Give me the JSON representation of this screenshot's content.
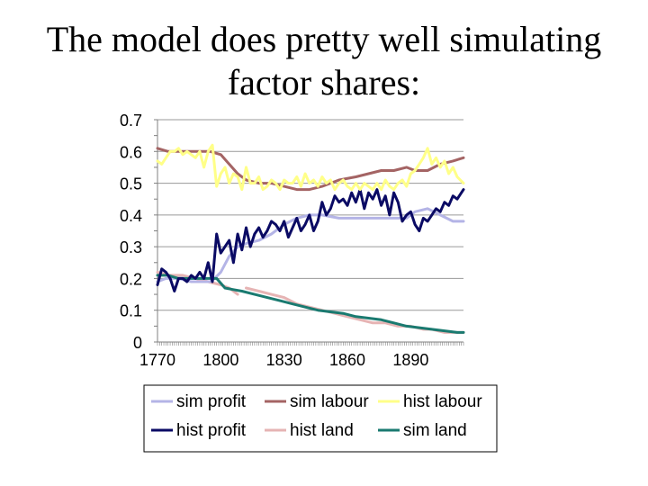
{
  "title_line1": "The model does pretty well simulating",
  "title_line2": "factor shares:",
  "chart_data": {
    "type": "line",
    "title": "The model does pretty well simulating factor shares:",
    "xlabel": "",
    "ylabel": "",
    "xlim": [
      1770,
      1915
    ],
    "ylim": [
      0,
      0.7
    ],
    "x_ticks": [
      "1770",
      "1800",
      "1830",
      "1860",
      "1890"
    ],
    "y_ticks": [
      "0",
      "0.1",
      "0.2",
      "0.3",
      "0.4",
      "0.5",
      "0.6",
      "0.7"
    ],
    "grid": true,
    "legend_position": "bottom",
    "series": [
      {
        "name": "sim profit",
        "color": "#b4b4e6",
        "x": [
          1770,
          1774,
          1780,
          1786,
          1790,
          1795,
          1797,
          1800,
          1804,
          1808,
          1812,
          1818,
          1824,
          1830,
          1836,
          1842,
          1848,
          1856,
          1864,
          1872,
          1880,
          1888,
          1892,
          1898,
          1904,
          1910,
          1915
        ],
        "y": [
          0.19,
          0.2,
          0.2,
          0.19,
          0.19,
          0.19,
          0.2,
          0.22,
          0.27,
          0.3,
          0.31,
          0.32,
          0.34,
          0.37,
          0.39,
          0.4,
          0.4,
          0.39,
          0.39,
          0.39,
          0.39,
          0.39,
          0.41,
          0.42,
          0.4,
          0.38,
          0.38
        ]
      },
      {
        "name": "sim labour",
        "color": "#a46464",
        "x": [
          1770,
          1775,
          1780,
          1785,
          1790,
          1795,
          1800,
          1804,
          1808,
          1812,
          1818,
          1824,
          1830,
          1836,
          1842,
          1848,
          1856,
          1864,
          1870,
          1876,
          1882,
          1888,
          1892,
          1898,
          1904,
          1910,
          1915
        ],
        "y": [
          0.61,
          0.6,
          0.6,
          0.6,
          0.6,
          0.6,
          0.59,
          0.56,
          0.53,
          0.51,
          0.5,
          0.5,
          0.49,
          0.48,
          0.48,
          0.49,
          0.51,
          0.52,
          0.53,
          0.54,
          0.54,
          0.55,
          0.54,
          0.54,
          0.56,
          0.57,
          0.58
        ]
      },
      {
        "name": "hist labour",
        "color": "#ffff88",
        "x": [
          1770,
          1772,
          1774,
          1776,
          1778,
          1780,
          1782,
          1784,
          1786,
          1788,
          1790,
          1792,
          1794,
          1796,
          1798,
          1800,
          1802,
          1804,
          1806,
          1808,
          1810,
          1812,
          1814,
          1816,
          1818,
          1820,
          1822,
          1824,
          1826,
          1828,
          1830,
          1832,
          1834,
          1836,
          1838,
          1840,
          1842,
          1844,
          1846,
          1848,
          1850,
          1852,
          1854,
          1856,
          1858,
          1860,
          1862,
          1864,
          1866,
          1868,
          1870,
          1872,
          1874,
          1876,
          1878,
          1880,
          1882,
          1884,
          1886,
          1888,
          1890,
          1892,
          1894,
          1896,
          1898,
          1900,
          1902,
          1904,
          1906,
          1908,
          1910,
          1912,
          1915
        ],
        "y": [
          0.57,
          0.56,
          0.58,
          0.6,
          0.6,
          0.61,
          0.59,
          0.6,
          0.59,
          0.58,
          0.6,
          0.55,
          0.6,
          0.62,
          0.49,
          0.53,
          0.55,
          0.5,
          0.53,
          0.52,
          0.48,
          0.55,
          0.5,
          0.5,
          0.52,
          0.48,
          0.49,
          0.51,
          0.5,
          0.48,
          0.51,
          0.5,
          0.5,
          0.52,
          0.49,
          0.53,
          0.5,
          0.51,
          0.49,
          0.52,
          0.5,
          0.51,
          0.48,
          0.5,
          0.51,
          0.49,
          0.48,
          0.5,
          0.48,
          0.5,
          0.49,
          0.48,
          0.5,
          0.48,
          0.51,
          0.49,
          0.48,
          0.5,
          0.51,
          0.49,
          0.53,
          0.54,
          0.56,
          0.58,
          0.61,
          0.56,
          0.58,
          0.55,
          0.57,
          0.53,
          0.55,
          0.52,
          0.5
        ]
      },
      {
        "name": "hist profit",
        "color": "#0a0a64",
        "x": [
          1770,
          1772,
          1774,
          1776,
          1778,
          1780,
          1782,
          1784,
          1786,
          1788,
          1790,
          1792,
          1794,
          1796,
          1798,
          1800,
          1802,
          1804,
          1806,
          1808,
          1810,
          1812,
          1814,
          1816,
          1818,
          1820,
          1822,
          1824,
          1826,
          1828,
          1830,
          1832,
          1834,
          1836,
          1838,
          1840,
          1842,
          1844,
          1846,
          1848,
          1850,
          1852,
          1854,
          1856,
          1858,
          1860,
          1862,
          1864,
          1866,
          1868,
          1870,
          1872,
          1874,
          1876,
          1878,
          1880,
          1882,
          1884,
          1886,
          1888,
          1890,
          1892,
          1894,
          1896,
          1898,
          1900,
          1902,
          1904,
          1906,
          1908,
          1910,
          1912,
          1915
        ],
        "y": [
          0.18,
          0.23,
          0.22,
          0.2,
          0.16,
          0.2,
          0.2,
          0.19,
          0.21,
          0.2,
          0.22,
          0.2,
          0.25,
          0.19,
          0.34,
          0.28,
          0.3,
          0.32,
          0.25,
          0.34,
          0.29,
          0.36,
          0.3,
          0.34,
          0.36,
          0.33,
          0.35,
          0.38,
          0.37,
          0.35,
          0.38,
          0.33,
          0.36,
          0.39,
          0.35,
          0.37,
          0.4,
          0.35,
          0.38,
          0.44,
          0.4,
          0.42,
          0.46,
          0.44,
          0.45,
          0.43,
          0.47,
          0.44,
          0.48,
          0.42,
          0.47,
          0.45,
          0.48,
          0.43,
          0.46,
          0.4,
          0.47,
          0.44,
          0.38,
          0.4,
          0.41,
          0.37,
          0.35,
          0.39,
          0.38,
          0.4,
          0.42,
          0.41,
          0.44,
          0.43,
          0.46,
          0.45,
          0.48
        ]
      },
      {
        "name": "hist land",
        "color": "#e6b4b4",
        "segments": [
          {
            "x": [
              1770,
              1776,
              1782,
              1788,
              1794,
              1800,
              1804,
              1808
            ],
            "y": [
              0.22,
              0.21,
              0.21,
              0.2,
              0.19,
              0.18,
              0.17,
              0.15
            ]
          },
          {
            "x": [
              1812,
              1818,
              1824,
              1830,
              1836,
              1842,
              1848,
              1854,
              1860,
              1866,
              1872,
              1878,
              1884,
              1890,
              1896,
              1900,
              1906,
              1912,
              1915
            ],
            "y": [
              0.17,
              0.16,
              0.15,
              0.14,
              0.12,
              0.11,
              0.1,
              0.09,
              0.08,
              0.07,
              0.06,
              0.06,
              0.05,
              0.05,
              0.04,
              0.04,
              0.03,
              0.03,
              0.03
            ]
          }
        ]
      },
      {
        "name": "sim land",
        "color": "#1a7a70",
        "x": [
          1770,
          1775,
          1780,
          1786,
          1792,
          1798,
          1802,
          1806,
          1810,
          1816,
          1822,
          1828,
          1834,
          1840,
          1846,
          1852,
          1858,
          1864,
          1870,
          1876,
          1882,
          1888,
          1894,
          1900,
          1906,
          1912,
          1915
        ],
        "y": [
          0.21,
          0.21,
          0.2,
          0.2,
          0.2,
          0.2,
          0.17,
          0.165,
          0.16,
          0.15,
          0.14,
          0.13,
          0.12,
          0.11,
          0.1,
          0.095,
          0.09,
          0.08,
          0.075,
          0.07,
          0.06,
          0.05,
          0.045,
          0.04,
          0.035,
          0.03,
          0.03
        ]
      }
    ]
  }
}
